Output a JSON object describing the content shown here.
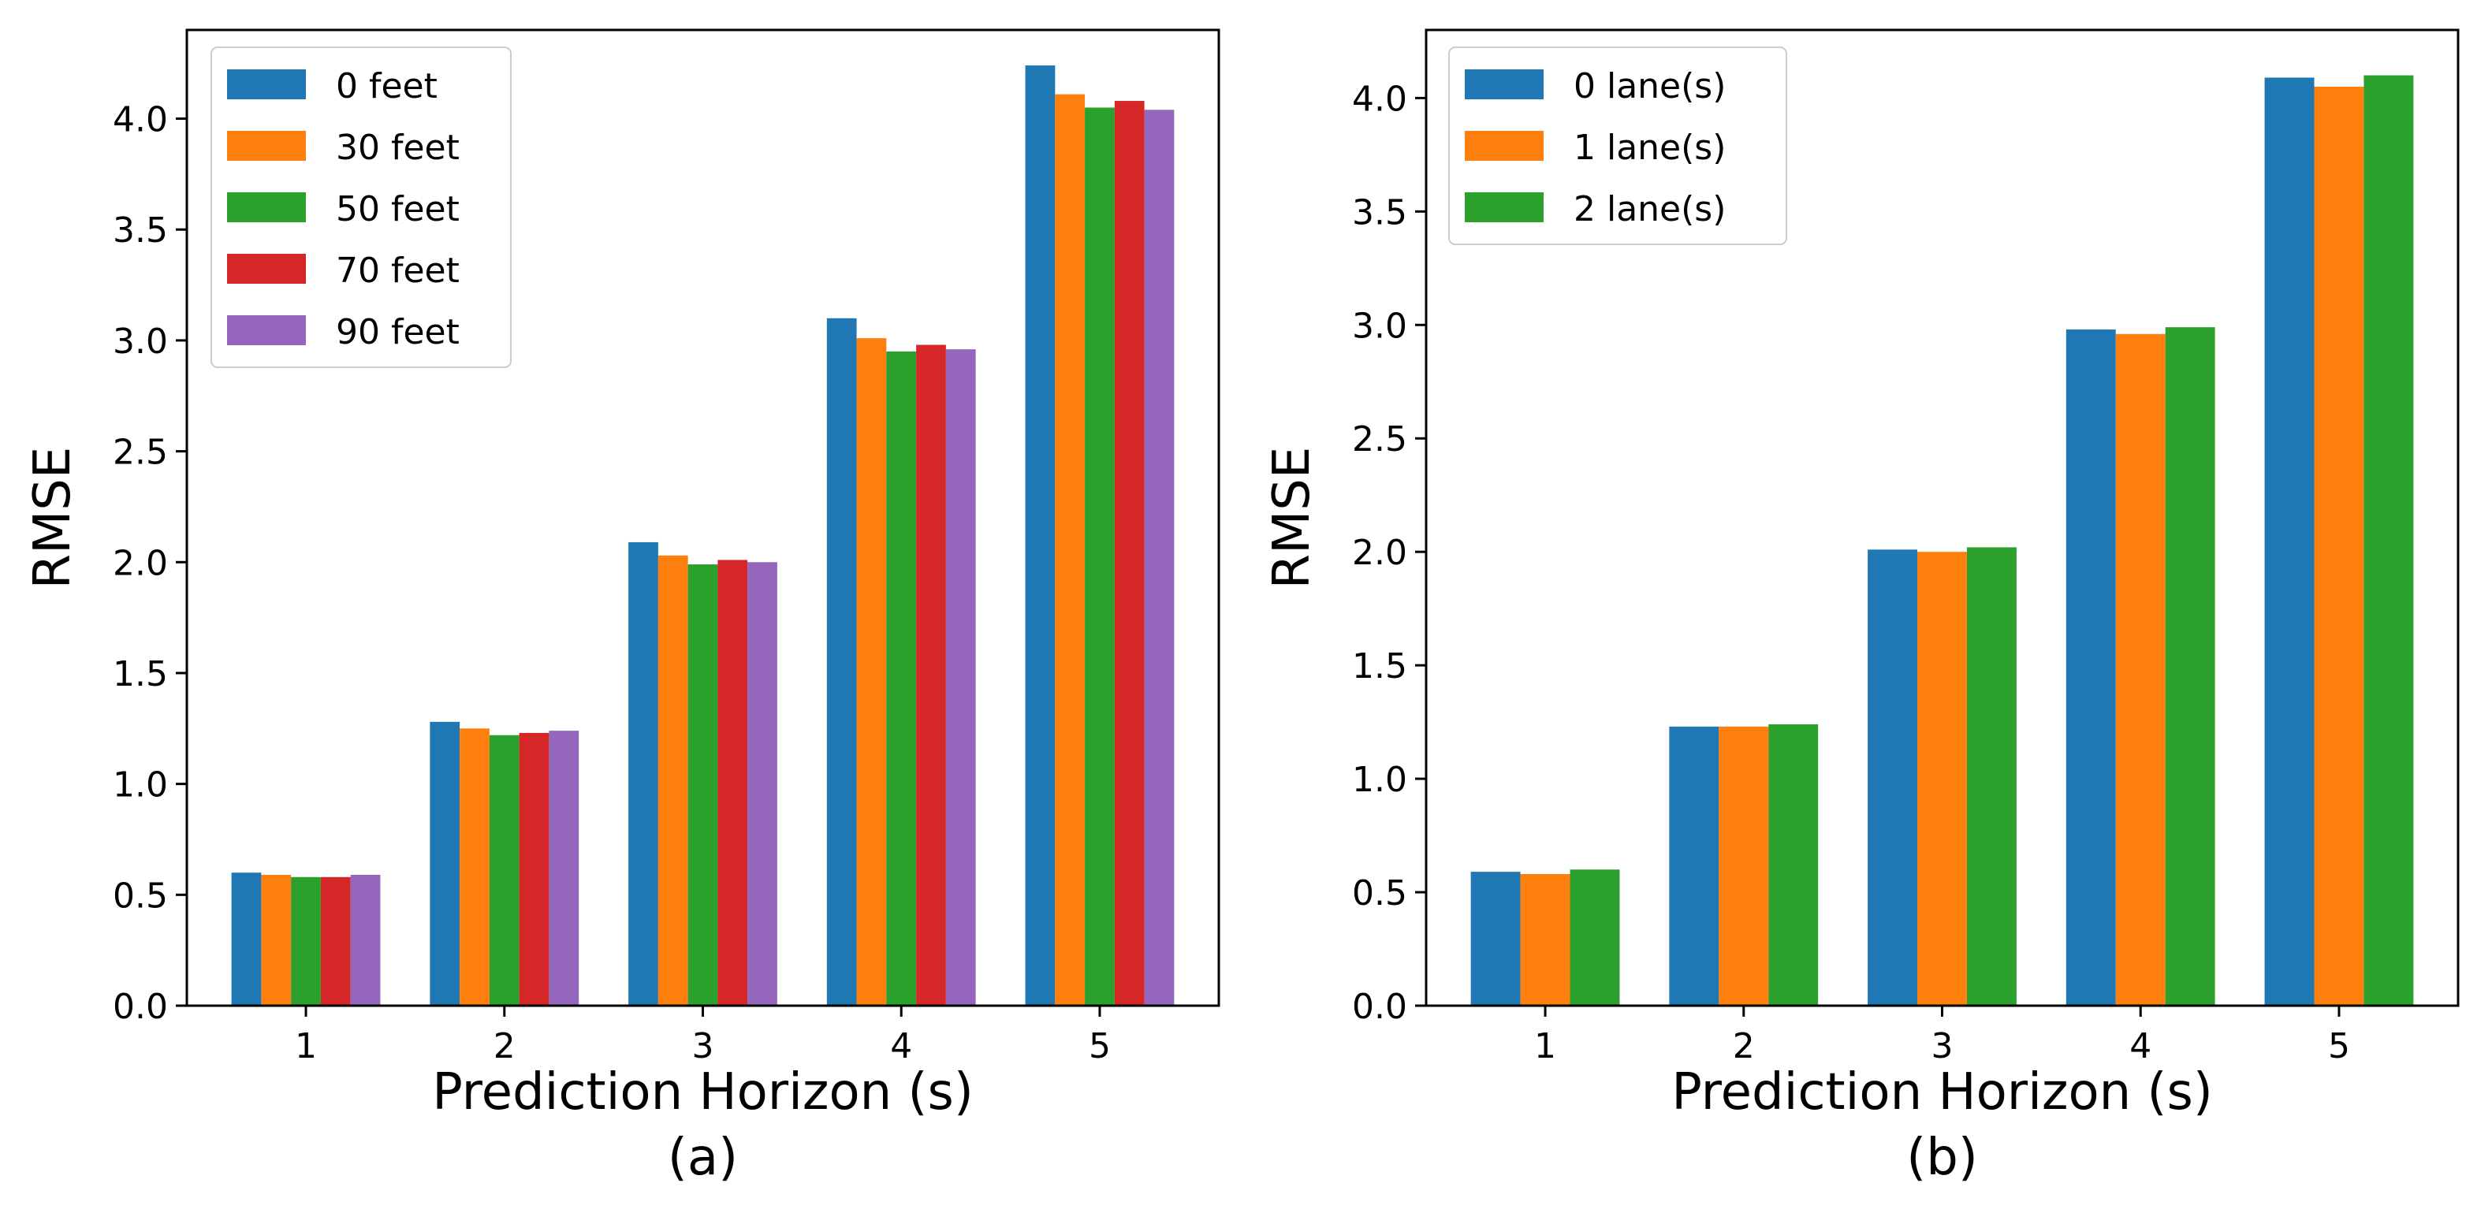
{
  "chart_data": [
    {
      "type": "bar",
      "caption": "(a)",
      "xlabel": "Prediction Horizon (s)",
      "ylabel": "RMSE",
      "categories": [
        "1",
        "2",
        "3",
        "4",
        "5"
      ],
      "ylim": [
        0,
        4.4
      ],
      "yticks": [
        "0.0",
        "0.5",
        "1.0",
        "1.5",
        "2.0",
        "2.5",
        "3.0",
        "3.5",
        "4.0"
      ],
      "legend_position": "top-left",
      "series": [
        {
          "name": "0 feet",
          "color": "#1f77b4",
          "values": [
            0.6,
            1.28,
            2.09,
            3.1,
            4.24
          ]
        },
        {
          "name": "30 feet",
          "color": "#ff7f0e",
          "values": [
            0.59,
            1.25,
            2.03,
            3.01,
            4.11
          ]
        },
        {
          "name": "50 feet",
          "color": "#2ca02c",
          "values": [
            0.58,
            1.22,
            1.99,
            2.95,
            4.05
          ]
        },
        {
          "name": "70 feet",
          "color": "#d62728",
          "values": [
            0.58,
            1.23,
            2.01,
            2.98,
            4.08
          ]
        },
        {
          "name": "90 feet",
          "color": "#9467bd",
          "values": [
            0.59,
            1.24,
            2.0,
            2.96,
            4.04
          ]
        }
      ]
    },
    {
      "type": "bar",
      "caption": "(b)",
      "xlabel": "Prediction Horizon (s)",
      "ylabel": "RMSE",
      "categories": [
        "1",
        "2",
        "3",
        "4",
        "5"
      ],
      "ylim": [
        0,
        4.3
      ],
      "yticks": [
        "0.0",
        "0.5",
        "1.0",
        "1.5",
        "2.0",
        "2.5",
        "3.0",
        "3.5",
        "4.0"
      ],
      "legend_position": "top-left",
      "series": [
        {
          "name": "0 lane(s)",
          "color": "#1f77b4",
          "values": [
            0.59,
            1.23,
            2.01,
            2.98,
            4.09
          ]
        },
        {
          "name": "1 lane(s)",
          "color": "#ff7f0e",
          "values": [
            0.58,
            1.23,
            2.0,
            2.96,
            4.05
          ]
        },
        {
          "name": "2 lane(s)",
          "color": "#2ca02c",
          "values": [
            0.6,
            1.24,
            2.02,
            2.99,
            4.1
          ]
        }
      ]
    }
  ]
}
